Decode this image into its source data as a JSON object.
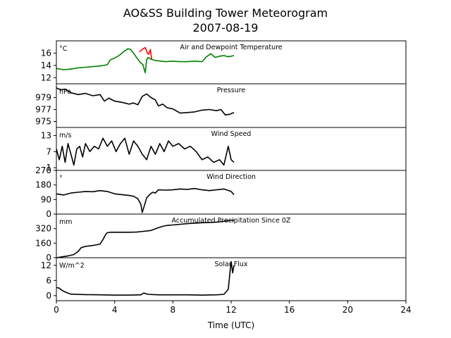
{
  "title": "AO&SS Building Tower Meteorogram",
  "subtitle": "2007-08-19",
  "xlabel": "Time (UTC)",
  "chart_data": {
    "type": "line",
    "title": "AO&SS Building Tower Meteorogram",
    "subtitle": "2007-08-19",
    "xlabel": "Time (UTC)",
    "xlim": [
      0,
      24
    ],
    "xticks": [
      0,
      4,
      8,
      12,
      16,
      20,
      24
    ],
    "grid": false,
    "panels": [
      {
        "id": "temp",
        "title": "Air and Dewpoint Temperature",
        "ylabel": "°C",
        "ylim": [
          11,
          18
        ],
        "yticks": [
          12,
          14,
          16
        ],
        "series": [
          {
            "color": "#ff0000",
            "x": [
              5.7,
              5.95,
              6.1,
              6.25,
              6.35,
              6.45,
              6.55
            ],
            "y": [
              16.2,
              16.7,
              16.9,
              16.0,
              15.8,
              16.6,
              14.9
            ]
          },
          {
            "color": "#008000",
            "x": [
              0,
              0.5,
              1.0,
              1.5,
              2.0,
              2.5,
              3.0,
              3.5,
              3.7,
              4.0,
              4.3,
              4.6,
              4.9,
              5.1,
              5.3,
              5.5,
              5.6,
              5.75,
              5.85,
              5.95,
              6.05,
              6.1,
              6.2,
              6.3,
              6.5,
              6.8,
              7.5,
              8.0,
              8.5,
              9.0,
              9.5,
              10.0,
              10.3,
              10.6,
              10.9,
              11.2,
              11.5,
              11.8,
              12.0,
              12.2
            ],
            "y": [
              13.5,
              13.3,
              13.4,
              13.6,
              13.7,
              13.8,
              13.9,
              14.1,
              14.9,
              15.2,
              15.6,
              16.2,
              16.7,
              16.6,
              16.0,
              15.3,
              15.0,
              14.5,
              14.3,
              14.1,
              13.2,
              12.8,
              14.9,
              15.3,
              15.0,
              14.8,
              14.6,
              14.7,
              14.6,
              14.6,
              14.7,
              14.6,
              15.4,
              15.9,
              15.3,
              15.5,
              15.6,
              15.4,
              15.5,
              15.6
            ]
          }
        ]
      },
      {
        "id": "pres",
        "title": "Pressure",
        "ylabel": "hPa",
        "ylim": [
          974,
          981.3
        ],
        "yticks": [
          975,
          977,
          979
        ],
        "series": [
          {
            "color": "#000000",
            "x": [
              0,
              0.3,
              0.6,
              1.0,
              1.5,
              2.0,
              2.5,
              3.0,
              3.3,
              3.6,
              4.0,
              4.5,
              5.0,
              5.3,
              5.6,
              5.9,
              6.2,
              6.5,
              6.8,
              7.0,
              7.3,
              7.6,
              8.0,
              8.5,
              9.0,
              9.5,
              10.0,
              10.5,
              11.0,
              11.3,
              11.6,
              11.9,
              12.2
            ],
            "y": [
              980.6,
              980.3,
              980.4,
              979.8,
              979.5,
              979.7,
              979.3,
              979.5,
              978.4,
              978.9,
              978.4,
              978.2,
              977.9,
              978.1,
              977.8,
              979.2,
              979.6,
              979.0,
              978.6,
              977.6,
              977.9,
              977.3,
              977.1,
              976.4,
              976.5,
              976.6,
              976.9,
              977.0,
              976.8,
              977.0,
              976.1,
              976.2,
              976.5
            ]
          }
        ]
      },
      {
        "id": "wspd",
        "title": "Wind Speed",
        "ylabel": "m/s",
        "ylim": [
          0,
          16
        ],
        "yticks": [
          1,
          7,
          13
        ],
        "series": [
          {
            "color": "#000000",
            "x": [
              0,
              0.2,
              0.4,
              0.6,
              0.8,
              1.0,
              1.2,
              1.4,
              1.6,
              1.8,
              2.0,
              2.3,
              2.6,
              2.9,
              3.2,
              3.5,
              3.8,
              4.1,
              4.4,
              4.7,
              5.0,
              5.3,
              5.6,
              5.9,
              6.2,
              6.5,
              6.8,
              7.1,
              7.4,
              7.7,
              8.0,
              8.4,
              8.8,
              9.2,
              9.6,
              10.0,
              10.4,
              10.8,
              11.2,
              11.5,
              11.8,
              12.0,
              12.2
            ],
            "y": [
              8,
              4,
              9,
              3,
              10,
              6,
              2,
              8,
              9,
              5,
              10,
              7,
              9,
              8,
              12,
              9,
              11,
              7,
              10,
              12,
              6,
              11,
              9,
              6,
              4,
              9,
              6,
              10,
              7,
              11,
              9,
              10,
              8,
              9,
              7,
              4,
              5,
              3,
              4,
              2,
              9,
              4,
              3
            ]
          }
        ]
      },
      {
        "id": "wdir",
        "title": "Wind Direction",
        "ylabel": "°",
        "ylim": [
          0,
          270
        ],
        "yticks": [
          0,
          90,
          180,
          270
        ],
        "series": [
          {
            "color": "#000000",
            "x": [
              0,
              0.5,
              1.0,
              1.5,
              2.0,
              2.5,
              3.0,
              3.5,
              4.0,
              4.5,
              5.0,
              5.3,
              5.6,
              5.8,
              5.9,
              6.0,
              6.1,
              6.2,
              6.4,
              6.6,
              6.8,
              7.0,
              7.5,
              8.0,
              8.5,
              9.0,
              9.5,
              10.0,
              10.5,
              11.0,
              11.5,
              12.0,
              12.2
            ],
            "y": [
              125,
              118,
              130,
              135,
              140,
              138,
              145,
              140,
              125,
              120,
              115,
              110,
              95,
              60,
              10,
              40,
              70,
              100,
              120,
              135,
              130,
              150,
              148,
              150,
              155,
              153,
              158,
              150,
              145,
              150,
              155,
              140,
              120
            ]
          }
        ]
      },
      {
        "id": "precip",
        "title": "Accumulated Precipitation Since 0Z",
        "ylabel": "mm",
        "ylim": [
          0,
          480
        ],
        "yticks": [
          0,
          160,
          320
        ],
        "series": [
          {
            "color": "#000000",
            "x": [
              0,
              0.4,
              0.8,
              1.2,
              1.5,
              1.7,
              2.0,
              2.5,
              3.0,
              3.2,
              3.4,
              3.5,
              3.7,
              4.0,
              4.5,
              5.0,
              5.5,
              6.0,
              6.5,
              7.0,
              7.3,
              7.6,
              8.0,
              8.5,
              9.0,
              9.5,
              10.0,
              10.5,
              11.0,
              11.5,
              12.0,
              12.2
            ],
            "y": [
              0,
              10,
              20,
              35,
              70,
              110,
              125,
              135,
              150,
              200,
              260,
              275,
              280,
              280,
              280,
              280,
              282,
              290,
              300,
              330,
              345,
              355,
              360,
              368,
              375,
              380,
              385,
              388,
              392,
              400,
              410,
              412
            ]
          }
        ]
      },
      {
        "id": "solar",
        "title": "Solar Flux",
        "ylabel": "W/m^2",
        "ylim": [
          -2,
          15
        ],
        "yticks": [
          0,
          6,
          12
        ],
        "series": [
          {
            "color": "#000000",
            "x": [
              0,
              0.2,
              0.4,
              0.7,
              1.0,
              2.0,
              3.0,
              4.0,
              5.0,
              5.8,
              6.0,
              6.3,
              7.0,
              8.0,
              9.0,
              10.0,
              11.0,
              11.5,
              11.8,
              11.9,
              12.0,
              12.05,
              12.1,
              12.2
            ],
            "y": [
              3.2,
              3.0,
              2.0,
              1.2,
              0.6,
              0.4,
              0.3,
              0.2,
              0.2,
              0.3,
              1.0,
              0.5,
              0.3,
              0.3,
              0.3,
              0.2,
              0.3,
              0.5,
              2.5,
              8.0,
              13.5,
              11.5,
              9.0,
              12.0
            ]
          }
        ]
      }
    ]
  }
}
